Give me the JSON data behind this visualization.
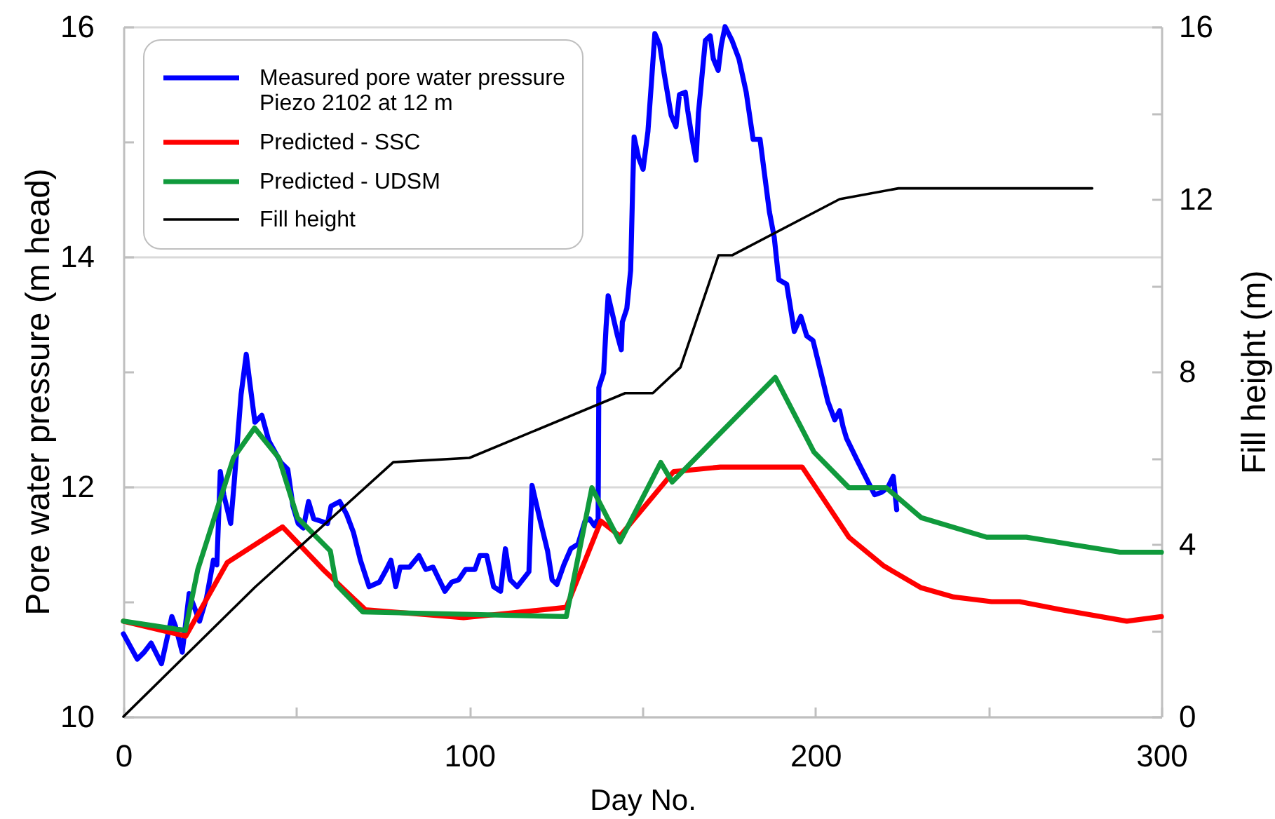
{
  "chart_data": {
    "type": "line",
    "xlabel": "Day No.",
    "ylabel": "Pore water pressure (m head)",
    "y2label": "Fill height (m)",
    "xlim": [
      0,
      300
    ],
    "xticks": [
      0,
      {
        "value": 50,
        "label": null
      },
      100,
      {
        "value": 150,
        "label": null
      },
      200,
      {
        "value": 250,
        "label": null
      },
      300
    ],
    "ylim": [
      10,
      16
    ],
    "yticks": [
      10,
      {
        "value": 11,
        "label": null
      },
      12,
      {
        "value": 13,
        "label": null
      },
      14,
      {
        "value": 15,
        "label": null
      },
      16
    ],
    "y2lim": [
      0,
      16
    ],
    "y2ticks": [
      0,
      {
        "value": 2,
        "label": null
      },
      4,
      {
        "value": 6,
        "label": null
      },
      8,
      {
        "value": 10,
        "label": null
      },
      12,
      {
        "value": 14,
        "label": null
      },
      16
    ],
    "grid": "y",
    "legend": "top left",
    "series": [
      {
        "name": "Measured pore water pressure\nPiezo 2102 at 12 m",
        "color": "#0000ff",
        "x": [
          0,
          4,
          6,
          8,
          11,
          14,
          15,
          17,
          19,
          20,
          22,
          24,
          26,
          27,
          28,
          29,
          31,
          32,
          34,
          35.5,
          36.5,
          38,
          40,
          42,
          45.5,
          47.5,
          49,
          50.5,
          52,
          53.5,
          55,
          57,
          59,
          60,
          62.5,
          64.5,
          66.5,
          68.5,
          71,
          74,
          76,
          77.3,
          78.7,
          80,
          82.7,
          85.4,
          87.4,
          89.5,
          92.9,
          94.9,
          96.9,
          98.9,
          101.6,
          103,
          105,
          107,
          109,
          110.4,
          111.8,
          113.8,
          117.2,
          118.1,
          120.5,
          122.6,
          123.9,
          125.3,
          127.3,
          129.3,
          131.4,
          133.4,
          134.7,
          136.1,
          137.2,
          137.4,
          138.8,
          139.5,
          140.1,
          141.2,
          142.8,
          143.9,
          144.2,
          145.5,
          146.6,
          147.2,
          147.6,
          148.9,
          150.2,
          151.6,
          152.6,
          153.6,
          155,
          156.3,
          158.3,
          159.7,
          160.7,
          162.4,
          163.1,
          164.4,
          165.5,
          166.2,
          168.2,
          169.6,
          170.5,
          171.9,
          172.8,
          173.9,
          175.9,
          177.9,
          180,
          182,
          184,
          186.7,
          188.1,
          189.4,
          191.7,
          193.9,
          195.8,
          197.5,
          199.3,
          201.6,
          203.6,
          205.6,
          207,
          208,
          209,
          212.4,
          217.1,
          219.1,
          220.9,
          222.5,
          223.5
        ],
        "values": [
          10.72,
          10.5,
          10.56,
          10.64,
          10.46,
          10.87,
          10.79,
          10.56,
          11.07,
          10.99,
          10.83,
          11.03,
          11.36,
          11.32,
          12.13,
          11.93,
          11.68,
          12.03,
          12.8,
          13.15,
          12.91,
          12.56,
          12.62,
          12.4,
          12.21,
          12.15,
          11.83,
          11.68,
          11.64,
          11.87,
          11.72,
          11.7,
          11.68,
          11.83,
          11.87,
          11.76,
          11.6,
          11.36,
          11.13,
          11.17,
          11.28,
          11.36,
          11.13,
          11.3,
          11.3,
          11.4,
          11.28,
          11.3,
          11.09,
          11.17,
          11.19,
          11.28,
          11.28,
          11.4,
          11.4,
          11.13,
          11.09,
          11.46,
          11.19,
          11.13,
          11.26,
          12.01,
          11.7,
          11.44,
          11.19,
          11.15,
          11.32,
          11.46,
          11.5,
          11.7,
          11.72,
          11.66,
          11.72,
          12.86,
          12.99,
          13.39,
          13.66,
          13.52,
          13.31,
          13.19,
          13.43,
          13.55,
          13.88,
          14.62,
          15.04,
          14.86,
          14.76,
          15.09,
          15.51,
          15.94,
          15.84,
          15.59,
          15.23,
          15.13,
          15.41,
          15.43,
          15.27,
          15.02,
          14.84,
          15.25,
          15.88,
          15.92,
          15.72,
          15.62,
          15.84,
          16.0,
          15.88,
          15.72,
          15.43,
          15.02,
          15.02,
          14.39,
          14.17,
          13.8,
          13.76,
          13.35,
          13.48,
          13.31,
          13.27,
          12.99,
          12.74,
          12.58,
          12.66,
          12.52,
          12.42,
          12.21,
          11.93,
          11.95,
          11.99,
          12.09,
          11.8
        ]
      },
      {
        "name": "Predicted - SSC",
        "color": "#ff0000",
        "x": [
          0,
          18,
          30,
          46,
          57.7,
          69.9,
          98.3,
          128,
          138,
          143.5,
          159,
          172.5,
          196.2,
          209.7,
          219.8,
          230.6,
          240,
          250.9,
          259,
          271,
          290,
          300
        ],
        "values": [
          10.83,
          10.7,
          11.34,
          11.65,
          11.28,
          10.93,
          10.86,
          10.95,
          11.7,
          11.57,
          12.13,
          12.17,
          12.17,
          11.56,
          11.31,
          11.12,
          11.04,
          11.0,
          11.0,
          10.93,
          10.83,
          10.87
        ]
      },
      {
        "name": "Predicted - UDSM",
        "color": "#109a3c",
        "x": [
          0,
          17.9,
          21.5,
          31.8,
          37.9,
          44.9,
          50.3,
          59.8,
          61.5,
          69.2,
          128,
          135.4,
          143.5,
          155.3,
          158.6,
          188.4,
          199.6,
          209.7,
          220.5,
          230.6,
          249.5,
          261,
          288,
          300
        ],
        "values": [
          10.83,
          10.75,
          11.28,
          12.25,
          12.51,
          12.25,
          11.73,
          11.44,
          11.15,
          10.91,
          10.87,
          11.99,
          11.52,
          12.21,
          12.04,
          12.95,
          12.3,
          11.99,
          11.99,
          11.73,
          11.56,
          11.56,
          11.43,
          11.43
        ]
      },
      {
        "name": "Fill height",
        "color": "#000000",
        "axis": "y2",
        "x": [
          0,
          38,
          78,
          100,
          145,
          153,
          161,
          172,
          176,
          207,
          224,
          280
        ],
        "values": [
          0,
          3.0,
          5.9,
          6.0,
          7.5,
          7.5,
          8.1,
          10.7,
          10.7,
          12.0,
          12.25,
          12.25
        ]
      }
    ]
  }
}
